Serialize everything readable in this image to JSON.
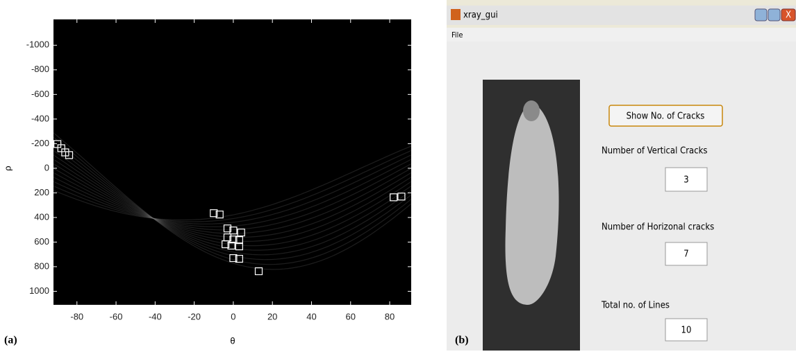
{
  "chart_data": {
    "type": "scatter",
    "x_label": "θ",
    "y_label": "ρ",
    "panel_label": "(a)",
    "x": [
      -90,
      -88,
      -86,
      -84,
      -10,
      -7,
      -3,
      0,
      4,
      -3,
      0,
      3,
      -4,
      -1,
      3,
      0,
      3,
      13,
      82,
      86
    ],
    "values": [
      -197,
      -163,
      -129,
      -107,
      365,
      376,
      489,
      506,
      522,
      562,
      579,
      584,
      618,
      629,
      635,
      730,
      736,
      837,
      236,
      230
    ],
    "color": "#ffffff",
    "xlim": [
      -92,
      91
    ],
    "ylim": [
      -1210,
      1110
    ],
    "y_reversed": true,
    "xticks": [
      -80,
      -60,
      -40,
      -20,
      0,
      20,
      40,
      60,
      80
    ],
    "yticks": [
      -1000,
      -800,
      -600,
      -400,
      -200,
      0,
      200,
      400,
      600,
      800,
      1000
    ]
  },
  "gui": {
    "panel_label": "(b)",
    "title": "xray_gui",
    "menu": "File",
    "button": "Show No. of Cracks",
    "fields": [
      {
        "label": "Number of Vertical Cracks",
        "value": 3
      },
      {
        "label": "Number of Horizonal cracks",
        "value": 7
      },
      {
        "label": "Total no. of Lines",
        "value": 10
      }
    ]
  }
}
